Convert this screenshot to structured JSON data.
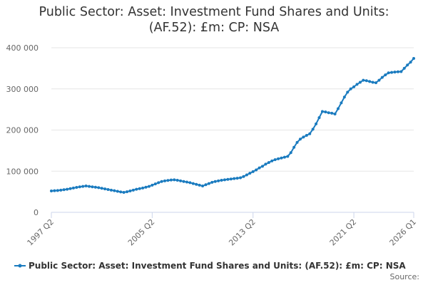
{
  "chart_data": {
    "type": "line",
    "title": "Public Sector: Asset: Investment Fund Shares and Units: (AF.52): £m: CP: NSA",
    "source_label": "Source:",
    "categories": [
      "1997 Q2",
      null,
      null,
      null,
      null,
      null,
      null,
      null,
      null,
      null,
      null,
      null,
      null,
      null,
      null,
      null,
      null,
      null,
      null,
      null,
      null,
      null,
      null,
      null,
      null,
      null,
      null,
      null,
      null,
      null,
      null,
      null,
      "2005 Q2",
      null,
      null,
      null,
      null,
      null,
      null,
      null,
      null,
      null,
      null,
      null,
      null,
      null,
      null,
      null,
      null,
      null,
      null,
      null,
      null,
      null,
      null,
      null,
      null,
      null,
      null,
      null,
      null,
      null,
      null,
      null,
      "2013 Q2",
      null,
      null,
      null,
      null,
      null,
      null,
      null,
      null,
      null,
      null,
      null,
      null,
      null,
      null,
      null,
      null,
      null,
      null,
      null,
      null,
      null,
      null,
      null,
      null,
      null,
      null,
      null,
      null,
      null,
      null,
      null,
      "2021 Q2",
      null,
      null,
      null,
      null,
      null,
      null,
      null,
      null,
      null,
      null,
      null,
      null,
      null,
      null,
      null,
      null,
      null,
      null,
      "2026 Q1"
    ],
    "series": [
      {
        "name": "Public Sector: Asset: Investment Fund Shares and Units: (AF.52): £m: CP: NSA",
        "color": "#1a7bbf",
        "values": [
          52000,
          52500,
          53000,
          54000,
          55000,
          56000,
          57500,
          59000,
          60500,
          62000,
          63000,
          64000,
          63000,
          62000,
          61000,
          60000,
          58500,
          57000,
          55500,
          54000,
          52500,
          51000,
          49500,
          48500,
          50000,
          52000,
          54000,
          56000,
          57500,
          59000,
          61000,
          63000,
          66000,
          69000,
          72000,
          75000,
          76500,
          77500,
          78500,
          79000,
          78000,
          76500,
          75000,
          73500,
          72000,
          70000,
          68000,
          66000,
          64000,
          67000,
          70000,
          73000,
          75000,
          76500,
          78000,
          79000,
          80000,
          81000,
          82000,
          83000,
          84000,
          87000,
          91000,
          95000,
          99000,
          103000,
          108000,
          112000,
          117000,
          121000,
          125000,
          128000,
          130000,
          132000,
          134000,
          136000,
          145000,
          158000,
          170000,
          178000,
          183000,
          187000,
          191000,
          202000,
          215000,
          230000,
          245000,
          244000,
          242000,
          241000,
          239000,
          252000,
          266000,
          280000,
          292000,
          300000,
          305000,
          311000,
          316000,
          321000,
          320000,
          318000,
          316000,
          315000,
          321000,
          328000,
          334000,
          339000,
          340000,
          341000,
          341500,
          342000,
          350000,
          358000,
          365000,
          374000
        ]
      }
    ],
    "ylim": [
      0,
      400000
    ],
    "yticks": [
      0,
      {
        "value": 100000,
        "label": "100 000"
      },
      {
        "value": 200000,
        "label": "200 000"
      },
      {
        "value": 300000,
        "label": "300 000"
      },
      {
        "value": 400000,
        "label": "400 000"
      }
    ],
    "grid": true
  }
}
